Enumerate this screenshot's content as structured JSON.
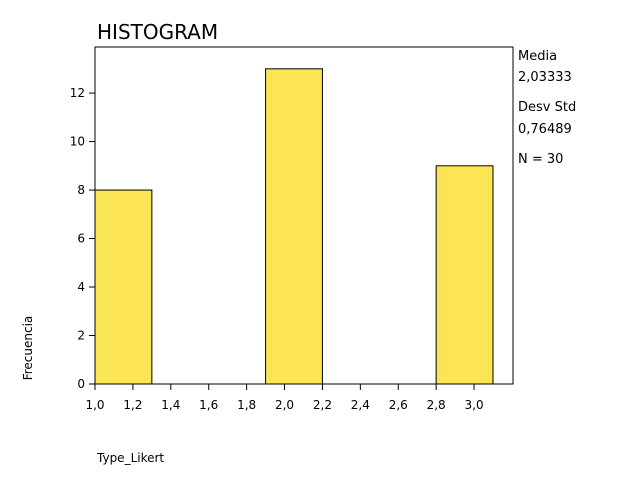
{
  "chart_data": {
    "type": "bar",
    "title": "HISTOGRAM",
    "xlabel": "Type_Likert",
    "ylabel": "Frecuencia",
    "bins": [
      {
        "x0": 1.0,
        "x1": 1.3,
        "value": 8
      },
      {
        "x0": 1.9,
        "x1": 2.2,
        "value": 13
      },
      {
        "x0": 2.8,
        "x1": 3.1,
        "value": 9
      }
    ],
    "xlim": [
      1.0,
      3.1
    ],
    "ylim": [
      0,
      13.9
    ],
    "xticks": [
      "1,0",
      "1,2",
      "1,4",
      "1,6",
      "1,8",
      "2,0",
      "2,2",
      "2,4",
      "2,6",
      "2,8",
      "3,0"
    ],
    "xtick_values": [
      1.0,
      1.2,
      1.4,
      1.6,
      1.8,
      2.0,
      2.2,
      2.4,
      2.6,
      2.8,
      3.0
    ],
    "yticks": [
      "0",
      "2",
      "4",
      "6",
      "8",
      "10",
      "12"
    ],
    "ytick_values": [
      0,
      2,
      4,
      6,
      8,
      10,
      12
    ],
    "bar_color": "#fce554",
    "grid": false,
    "legend": "none",
    "stats": {
      "mean_label": "Media",
      "mean_value": "2,03333",
      "std_label": "Desv Std",
      "std_value": "0,76489",
      "n_text": "N = 30"
    }
  }
}
